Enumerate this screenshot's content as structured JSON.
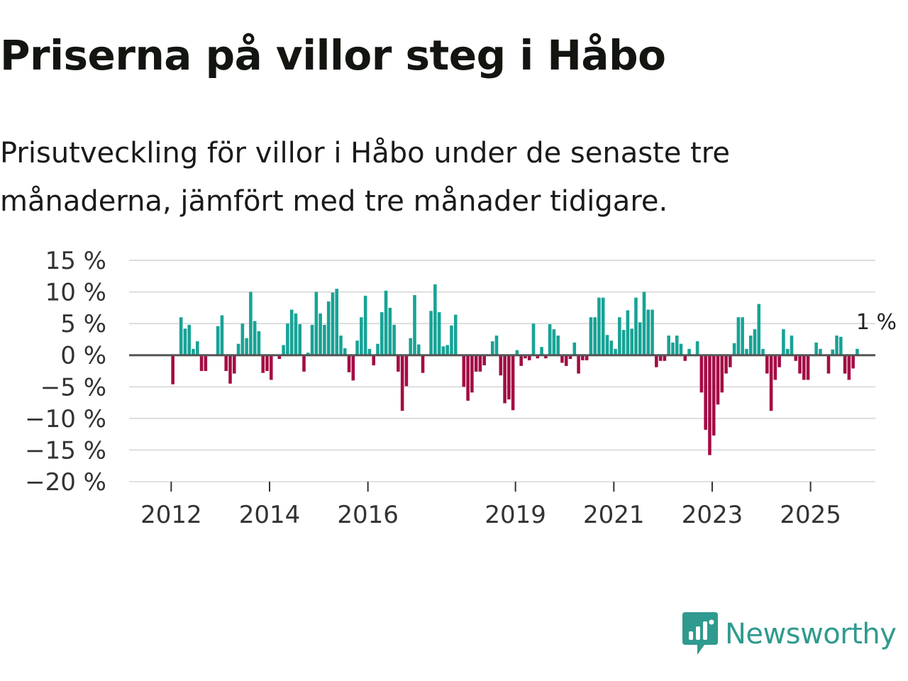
{
  "title": "Priserna på villor steg i Håbo",
  "subtitle": "Prisutveckling för villor i Håbo under de senaste tre månaderna, jämfört med tre månader tidigare.",
  "brand": {
    "name": "Newsworthy",
    "icon": "newsworthy-logo-icon"
  },
  "colors": {
    "positive": "#17a396",
    "negative": "#a40c45",
    "grid": "#dddddd",
    "zero_line": "#555555"
  },
  "chart_data": {
    "type": "bar",
    "title": "Priserna på villor steg i Håbo",
    "ylabel": "",
    "xlabel": "",
    "ylim": [
      -20,
      15
    ],
    "y_ticks": [
      15,
      10,
      5,
      0,
      -5,
      -10,
      -15,
      -20
    ],
    "y_tick_labels": [
      "15 %",
      "10 %",
      "5 %",
      "0 %",
      "−5 %",
      "−10 %",
      "−15 %",
      "−20 %"
    ],
    "x_tick_labels": [
      "2012",
      "2014",
      "2016",
      "2019",
      "2021",
      "2023",
      "2025"
    ],
    "x_tick_dates": [
      2012.0,
      2014.0,
      2016.0,
      2019.0,
      2021.0,
      2023.0,
      2025.0
    ],
    "start": 2011.0,
    "period_years": 0.08333,
    "last_label": "1 %",
    "values": [
      0,
      0,
      0,
      0,
      0,
      0,
      0,
      0,
      0,
      0,
      0,
      0,
      -4.6,
      0,
      6,
      4.2,
      4.8,
      1,
      2.2,
      -2.5,
      -2.5,
      0,
      0,
      4.6,
      6.3,
      -2.5,
      -4.5,
      -2.9,
      1.8,
      5,
      2.7,
      10,
      5.4,
      3.8,
      -2.8,
      -2.5,
      -3.9,
      0,
      -0.6,
      1.6,
      5,
      7.2,
      6.6,
      4.9,
      -2.6,
      0.4,
      4.8,
      10,
      6.6,
      4.8,
      8.5,
      9.9,
      10.5,
      3.1,
      1.1,
      -2.7,
      -4,
      2.3,
      6,
      9.4,
      1,
      -1.6,
      1.8,
      6.8,
      10.2,
      7.5,
      4.8,
      -2.6,
      -8.8,
      -4.9,
      2.7,
      9.5,
      1.7,
      -2.8,
      0,
      7,
      11.2,
      6.8,
      1.4,
      1.6,
      4.7,
      6.4,
      0,
      -5,
      -7.2,
      -5.9,
      -2.6,
      -2.6,
      -1.6,
      0,
      2.2,
      3.1,
      -3.2,
      -7.6,
      -7,
      -8.7,
      0.8,
      -1.7,
      -0.5,
      -0.8,
      5,
      -0.5,
      1.3,
      -0.5,
      4.9,
      4.1,
      3.1,
      -1.2,
      -1.7,
      -0.6,
      2,
      -2.9,
      -0.8,
      -0.8,
      6,
      6,
      9.1,
      9.1,
      3.2,
      2.3,
      1,
      6,
      4,
      7.1,
      4.2,
      9.1,
      5.2,
      10,
      7.2,
      7.2,
      -1.9,
      -0.9,
      -0.9,
      3.1,
      2,
      3.1,
      1.8,
      -0.9,
      1,
      0,
      2.2,
      -5.9,
      -11.8,
      -15.8,
      -12.7,
      -7.8,
      -5.9,
      -2.9,
      -1.9,
      1.9,
      6,
      6,
      1,
      3.1,
      4.1,
      8.1,
      1,
      -2.9,
      -8.8,
      -3.9,
      -1.9,
      4.1,
      1,
      3.1,
      -0.9,
      -2.9,
      -3.9,
      -3.9,
      0,
      2,
      1,
      0,
      -2.9,
      0.9,
      3.1,
      2.9,
      -2.9,
      -3.9,
      -2.1,
      1
    ]
  }
}
